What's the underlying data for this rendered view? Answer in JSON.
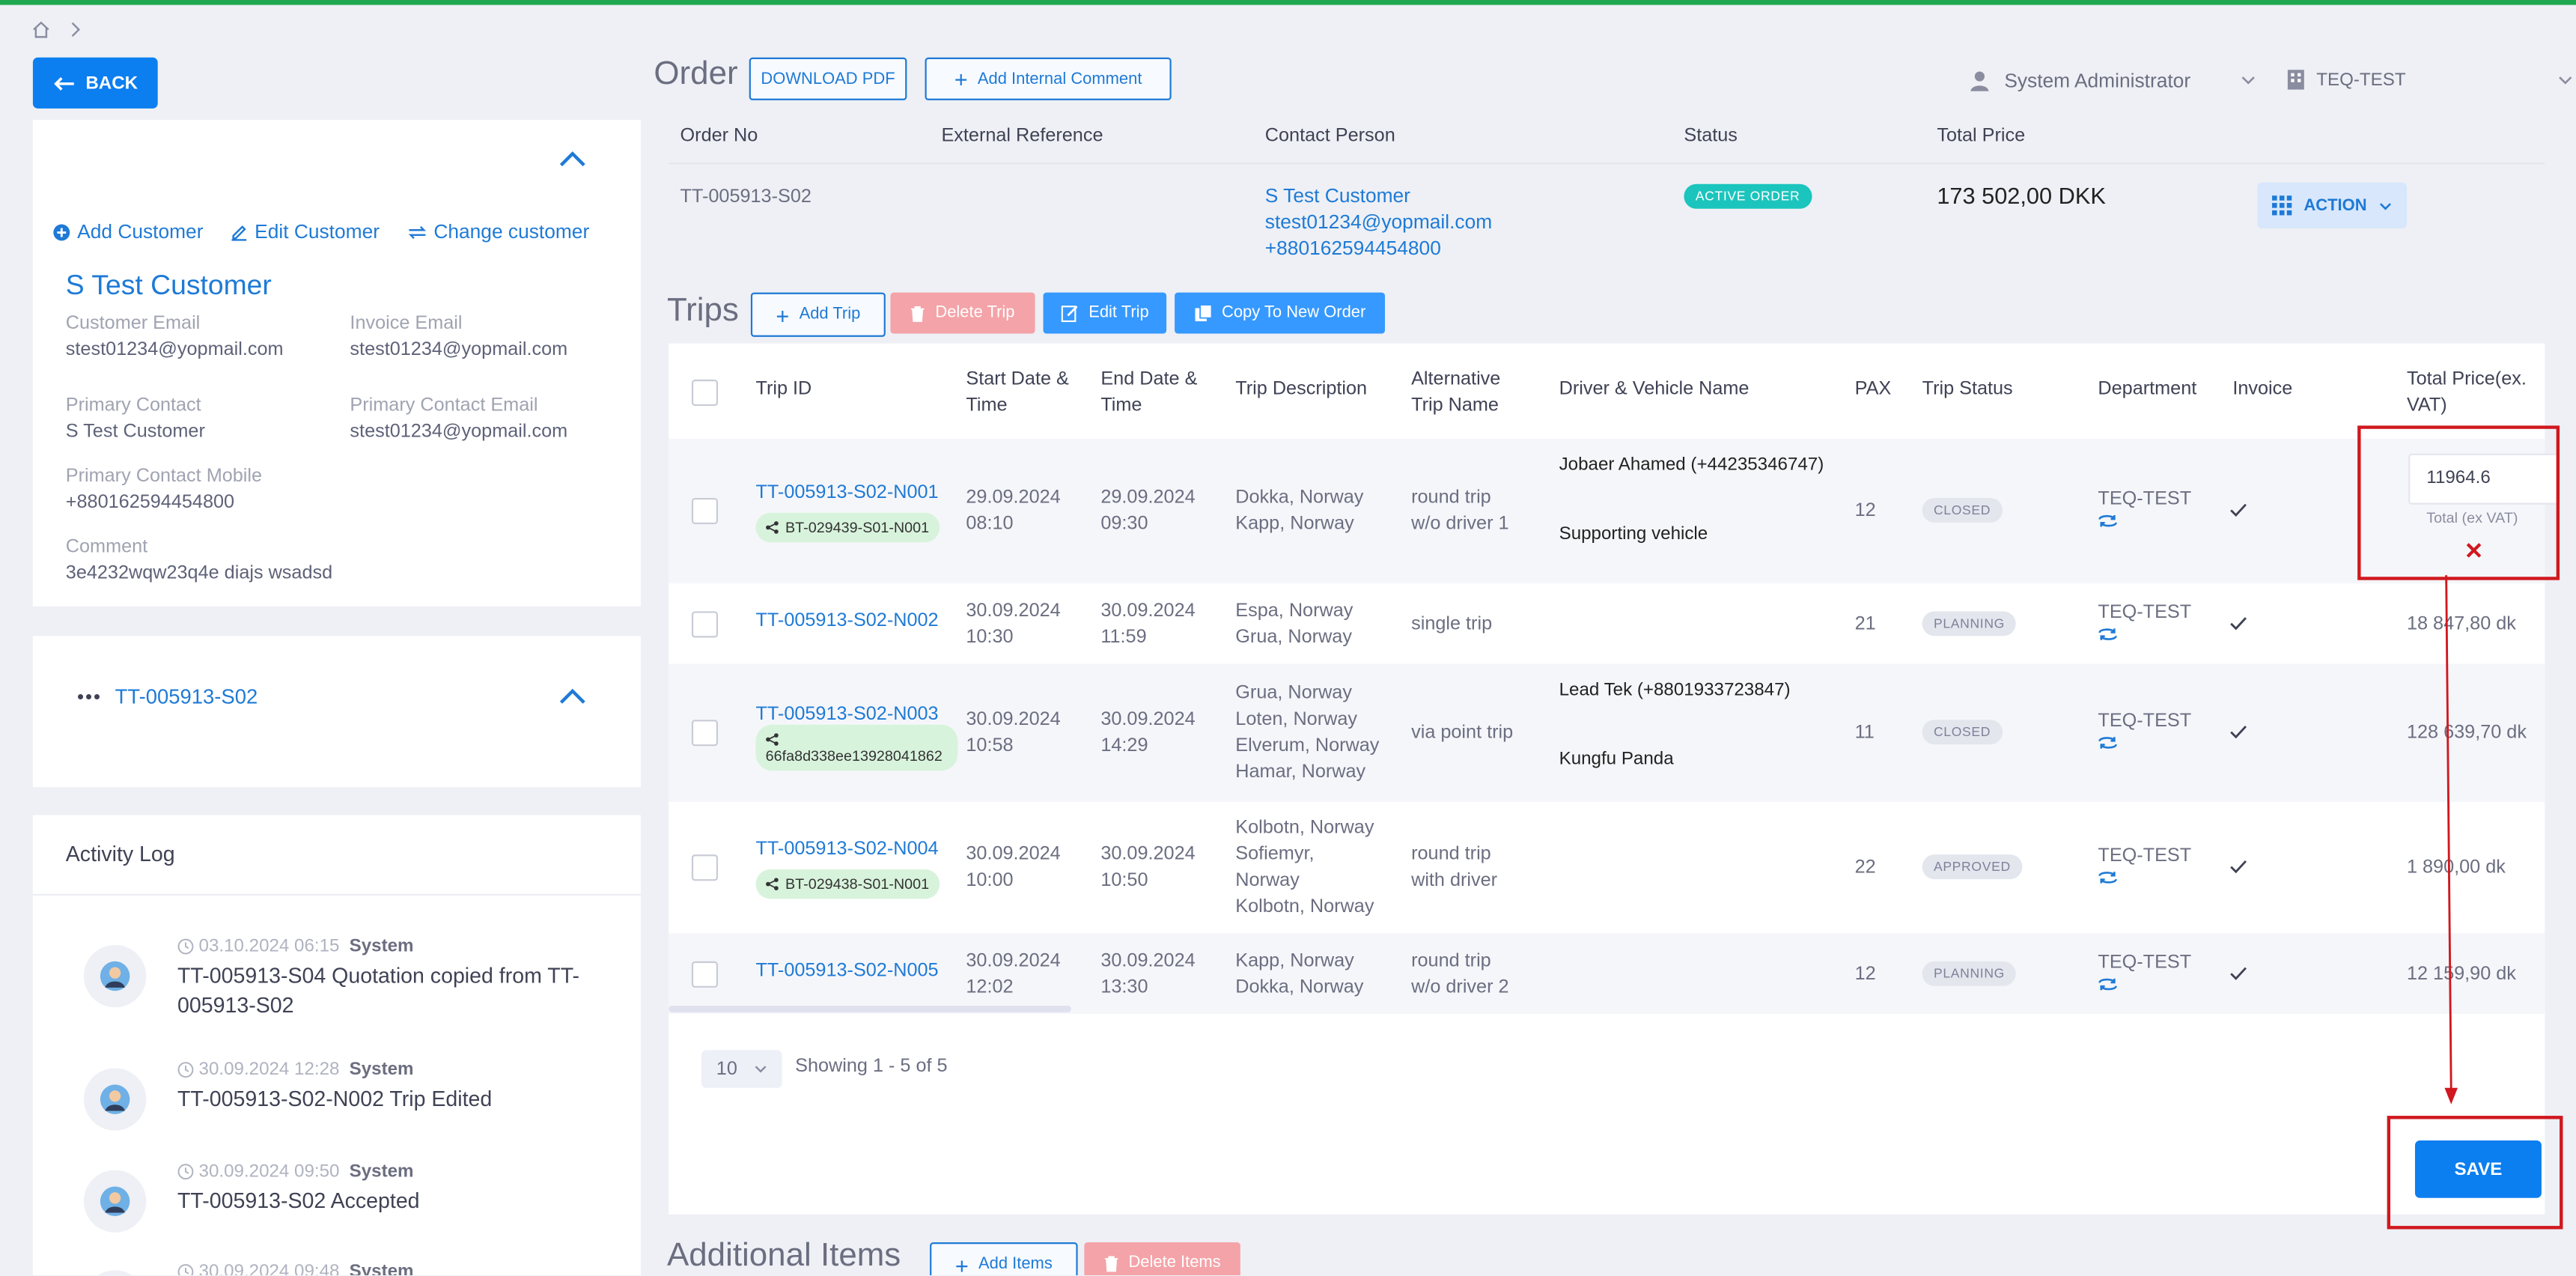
{
  "header": {
    "back_label": "BACK",
    "order_title": "Order",
    "download_pdf": "DOWNLOAD PDF",
    "add_comment": "Add Internal Comment",
    "user": "System Administrator",
    "tenant": "TEQ-TEST"
  },
  "customer_card": {
    "add_customer": "Add Customer",
    "edit_customer": "Edit Customer",
    "change_customer": "Change customer",
    "name": "S Test Customer",
    "customer_email_label": "Customer Email",
    "customer_email": "stest01234@yopmail.com",
    "invoice_email_label": "Invoice Email",
    "invoice_email": "stest01234@yopmail.com",
    "primary_contact_label": "Primary Contact",
    "primary_contact": "S Test Customer",
    "primary_contact_email_label": "Primary Contact Email",
    "primary_contact_email": "stest01234@yopmail.com",
    "primary_mobile_label": "Primary Contact Mobile",
    "primary_mobile": "+880162594454800",
    "comment_label": "Comment",
    "comment": "3e4232wqw23q4e diajs wsadsd"
  },
  "order_card": {
    "order_no": "TT-005913-S02"
  },
  "activity_log": {
    "title": "Activity Log",
    "entries": [
      {
        "time": "03.10.2024 06:15",
        "actor": "System",
        "text1": "TT-005913-S04 Quotation copied from TT-",
        "text2": "005913-S02"
      },
      {
        "time": "30.09.2024 12:28",
        "actor": "System",
        "text1": "TT-005913-S02-N002 Trip Edited",
        "text2": ""
      },
      {
        "time": "30.09.2024 09:50",
        "actor": "System",
        "text1": "TT-005913-S02 Accepted",
        "text2": ""
      },
      {
        "time": "30.09.2024 09:48",
        "actor": "System",
        "text1": "",
        "text2": ""
      }
    ]
  },
  "order_summary": {
    "headers": {
      "order_no": "Order No",
      "external_ref": "External Reference",
      "contact": "Contact Person",
      "status": "Status",
      "total": "Total Price"
    },
    "order_no": "TT-005913-S02",
    "contact_name": "S Test Customer",
    "contact_email": "stest01234@yopmail.com",
    "contact_phone": "+880162594454800",
    "status": "ACTIVE ORDER",
    "total": "173 502,00 DKK",
    "action": "ACTION"
  },
  "trips": {
    "title": "Trips",
    "add_trip": "Add Trip",
    "delete_trip": "Delete Trip",
    "edit_trip": "Edit Trip",
    "copy_trip": "Copy To New Order",
    "columns": [
      "Trip ID",
      "Start Date &",
      "Time",
      "End Date &",
      "Time",
      "Trip Description",
      "Alternative",
      "Trip Name",
      "Driver & Vehicle Name",
      "PAX",
      "Trip Status",
      "Department",
      "Invoice",
      "Total Price(ex.",
      "VAT)"
    ],
    "rows": [
      {
        "id": "TT-005913-S02-N001",
        "chip": "BT-029439-S01-N001",
        "start_date": "29.09.2024",
        "start_time": "08:10",
        "end_date": "29.09.2024",
        "end_time": "09:30",
        "desc": [
          "Dokka, Norway",
          "Kapp, Norway"
        ],
        "alt": [
          "round trip",
          "w/o driver 1"
        ],
        "driver": "Jobaer Ahamed (+44235346747)",
        "vehicle": "Supporting vehicle",
        "pax": "12",
        "status": "CLOSED",
        "dept": "TEQ-TEST",
        "price": ""
      },
      {
        "id": "TT-005913-S02-N002",
        "chip": "",
        "start_date": "30.09.2024",
        "start_time": "10:30",
        "end_date": "30.09.2024",
        "end_time": "11:59",
        "desc": [
          "Espa, Norway",
          "Grua, Norway"
        ],
        "alt": [
          "single trip"
        ],
        "driver": "",
        "vehicle": "",
        "pax": "21",
        "status": "PLANNING",
        "dept": "TEQ-TEST",
        "price": "18 847,80 dk"
      },
      {
        "id": "TT-005913-S02-N003",
        "chip": "66fa8d338ee13928041862",
        "start_date": "30.09.2024",
        "start_time": "10:58",
        "end_date": "30.09.2024",
        "end_time": "14:29",
        "desc": [
          "Grua, Norway",
          "Loten, Norway",
          "Elverum, Norway",
          "Hamar, Norway"
        ],
        "alt": [
          "via point trip"
        ],
        "driver": "Lead Tek (+8801933723847)",
        "vehicle": "Kungfu Panda",
        "pax": "11",
        "status": "CLOSED",
        "dept": "TEQ-TEST",
        "price": "128 639,70 dk"
      },
      {
        "id": "TT-005913-S02-N004",
        "chip": "BT-029438-S01-N001",
        "start_date": "30.09.2024",
        "start_time": "10:00",
        "end_date": "30.09.2024",
        "end_time": "10:50",
        "desc": [
          "Kolbotn, Norway",
          "Sofiemyr,",
          "Norway",
          "Kolbotn, Norway"
        ],
        "alt": [
          "round trip",
          "with driver"
        ],
        "driver": "",
        "vehicle": "",
        "pax": "22",
        "status": "APPROVED",
        "dept": "TEQ-TEST",
        "price": "1 890,00 dk"
      },
      {
        "id": "TT-005913-S02-N005",
        "chip": "",
        "start_date": "30.09.2024",
        "start_time": "12:02",
        "end_date": "30.09.2024",
        "end_time": "13:30",
        "desc": [
          "Kapp, Norway",
          "Dokka, Norway"
        ],
        "alt": [
          "round trip",
          "w/o driver 2"
        ],
        "driver": "",
        "vehicle": "",
        "pax": "12",
        "status": "PLANNING",
        "dept": "TEQ-TEST",
        "price": "12 159,90 dk"
      }
    ],
    "price_input_value": "11964.6",
    "price_input_caption": "Total (ex VAT)",
    "cancel_mark": "✕",
    "page_size": "10",
    "showing": "Showing 1 - 5 of 5",
    "save": "SAVE"
  },
  "additional": {
    "title": "Additional Items",
    "add_items": "Add Items",
    "delete_items": "Delete Items"
  },
  "colors": {
    "primary": "#0b7ef0",
    "link": "#1e7ad6",
    "annotation": "#d0181e",
    "active_badge": "#1bc5bd"
  }
}
